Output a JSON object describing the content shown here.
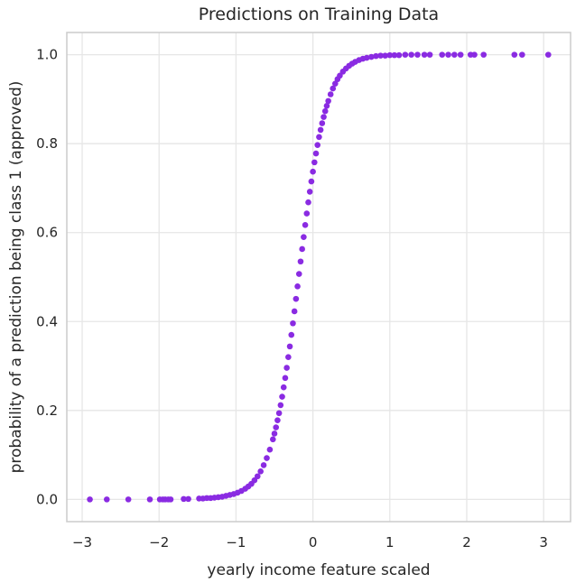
{
  "chart_data": {
    "type": "scatter",
    "title": "Predictions on Training Data",
    "xlabel": "yearly income feature scaled",
    "ylabel": "probability of a prediction being class 1 (approved)",
    "xlim": [
      -3.2,
      3.35
    ],
    "ylim": [
      -0.05,
      1.05
    ],
    "xticks": [
      -3,
      -2,
      -1,
      0,
      1,
      2,
      3
    ],
    "xtick_labels": [
      "−3",
      "−2",
      "−1",
      "0",
      "1",
      "2",
      "3"
    ],
    "yticks": [
      0.0,
      0.2,
      0.4,
      0.6,
      0.8,
      1.0
    ],
    "ytick_labels": [
      "0.0",
      "0.2",
      "0.4",
      "0.6",
      "0.8",
      "1.0"
    ],
    "grid": true,
    "point_color": "#8a2be2",
    "series": [
      {
        "x": [
          -2.9,
          -2.68,
          -2.4,
          -2.12,
          -1.99,
          -1.95,
          -1.92,
          -1.88,
          -1.85,
          -1.68,
          -1.62,
          -1.48,
          -1.43,
          -1.38,
          -1.33,
          -1.28,
          -1.23,
          -1.18,
          -1.13,
          -1.08,
          -1.03,
          -0.98,
          -0.93,
          -0.88,
          -0.84,
          -0.8,
          -0.76,
          -0.72,
          -0.68,
          -0.64,
          -0.6,
          -0.56,
          -0.52,
          -0.5,
          -0.48,
          -0.46,
          -0.44,
          -0.42,
          -0.4,
          -0.38,
          -0.36,
          -0.34,
          -0.32,
          -0.3,
          -0.28,
          -0.26,
          -0.24,
          -0.22,
          -0.2,
          -0.18,
          -0.16,
          -0.14,
          -0.12,
          -0.1,
          -0.08,
          -0.06,
          -0.04,
          -0.02,
          0.0,
          0.02,
          0.04,
          0.06,
          0.08,
          0.1,
          0.12,
          0.14,
          0.16,
          0.18,
          0.2,
          0.23,
          0.26,
          0.29,
          0.32,
          0.35,
          0.39,
          0.43,
          0.47,
          0.51,
          0.55,
          0.6,
          0.65,
          0.7,
          0.76,
          0.82,
          0.88,
          0.94,
          1.0,
          1.06,
          1.12,
          1.2,
          1.28,
          1.36,
          1.45,
          1.52,
          1.68,
          1.76,
          1.84,
          1.92,
          2.05,
          2.1,
          2.22,
          2.62,
          2.72,
          3.06
        ],
        "y": [
          0.0,
          0.0,
          0.0,
          0.0,
          0.0,
          0.0,
          0.0,
          0.0,
          0.0,
          0.001,
          0.001,
          0.002,
          0.002,
          0.003,
          0.003,
          0.004,
          0.005,
          0.006,
          0.008,
          0.01,
          0.012,
          0.015,
          0.019,
          0.024,
          0.029,
          0.035,
          0.043,
          0.052,
          0.063,
          0.077,
          0.093,
          0.112,
          0.135,
          0.148,
          0.162,
          0.178,
          0.194,
          0.212,
          0.231,
          0.252,
          0.273,
          0.296,
          0.32,
          0.344,
          0.37,
          0.396,
          0.423,
          0.451,
          0.479,
          0.507,
          0.535,
          0.563,
          0.59,
          0.617,
          0.643,
          0.668,
          0.692,
          0.715,
          0.737,
          0.758,
          0.778,
          0.797,
          0.815,
          0.831,
          0.846,
          0.86,
          0.873,
          0.885,
          0.896,
          0.911,
          0.924,
          0.935,
          0.945,
          0.953,
          0.962,
          0.969,
          0.975,
          0.98,
          0.984,
          0.988,
          0.991,
          0.993,
          0.995,
          0.997,
          0.998,
          0.998,
          0.999,
          0.999,
          0.999,
          1.0,
          1.0,
          1.0,
          1.0,
          1.0,
          1.0,
          1.0,
          1.0,
          1.0,
          1.0,
          1.0,
          1.0,
          1.0,
          1.0,
          1.0
        ]
      }
    ]
  }
}
